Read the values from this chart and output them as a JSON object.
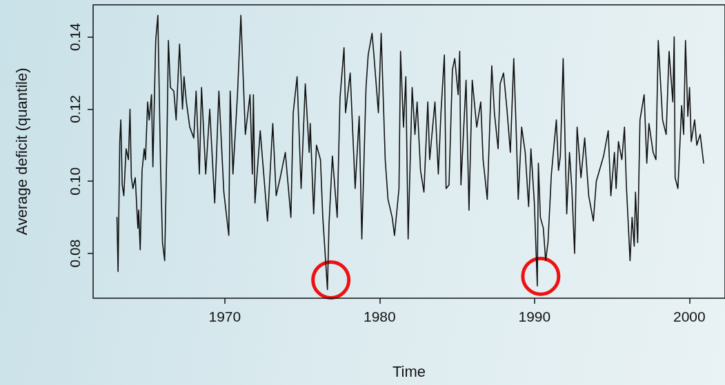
{
  "chart_data": {
    "type": "line",
    "xlabel": "Time",
    "ylabel": "Average deficit (quantile)",
    "xlim": [
      1961.5,
      2002.3
    ],
    "ylim": [
      0.0676,
      0.1489
    ],
    "xticks": [
      1970,
      1980,
      1990,
      2000
    ],
    "yticks": [
      0.08,
      {
        "value": 0.1,
        "label": "0.10"
      },
      0.12,
      0.14
    ],
    "grid": false,
    "marker": "none",
    "line_style": "solid",
    "series": [
      {
        "color": "#111111",
        "x": [
          1963.04,
          1963.11,
          1963.22,
          1963.29,
          1963.38,
          1963.48,
          1963.63,
          1963.78,
          1963.88,
          1963.97,
          1964.07,
          1964.22,
          1964.39,
          1964.44,
          1964.54,
          1964.66,
          1964.8,
          1964.88,
          1965.02,
          1965.12,
          1965.27,
          1965.36,
          1965.54,
          1965.68,
          1965.86,
          1965.98,
          1966.12,
          1966.27,
          1966.36,
          1966.49,
          1966.71,
          1966.86,
          1967.08,
          1967.27,
          1967.37,
          1967.52,
          1967.74,
          1968.0,
          1968.15,
          1968.36,
          1968.5,
          1968.77,
          1969.03,
          1969.35,
          1969.62,
          1969.94,
          1970.26,
          1970.35,
          1970.53,
          1970.82,
          1971.04,
          1971.33,
          1971.63,
          1971.78,
          1971.85,
          1971.95,
          1972.29,
          1972.76,
          1973.1,
          1973.32,
          1973.58,
          1973.91,
          1974.27,
          1974.42,
          1974.67,
          1974.93,
          1975.2,
          1975.45,
          1975.52,
          1975.74,
          1975.92,
          1976.18,
          1976.33,
          1976.63,
          1976.73,
          1976.95,
          1977.26,
          1977.44,
          1977.7,
          1977.8,
          1978.1,
          1978.42,
          1978.68,
          1978.85,
          1979.12,
          1979.26,
          1979.51,
          1979.63,
          1979.92,
          1980.1,
          1980.36,
          1980.54,
          1980.81,
          1980.96,
          1981.25,
          1981.35,
          1981.54,
          1981.69,
          1981.84,
          1982.1,
          1982.28,
          1982.42,
          1982.64,
          1982.86,
          1983.11,
          1983.23,
          1983.57,
          1983.79,
          1983.96,
          1984.18,
          1984.29,
          1984.48,
          1984.7,
          1984.85,
          1985.07,
          1985.17,
          1985.25,
          1985.58,
          1985.77,
          1985.98,
          1986.27,
          1986.53,
          1986.68,
          1986.95,
          1987.24,
          1987.41,
          1987.65,
          1987.78,
          1988.0,
          1988.22,
          1988.44,
          1988.66,
          1988.81,
          1988.95,
          1989.17,
          1989.4,
          1989.62,
          1989.77,
          1989.99,
          1990.18,
          1990.25,
          1990.38,
          1990.57,
          1990.72,
          1990.87,
          1991.09,
          1991.41,
          1991.55,
          1991.67,
          1991.85,
          1992.08,
          1992.26,
          1992.41,
          1992.59,
          1992.75,
          1993.0,
          1993.24,
          1993.5,
          1993.8,
          1993.99,
          1994.46,
          1994.76,
          1994.93,
          1995.16,
          1995.27,
          1995.42,
          1995.64,
          1995.81,
          1995.93,
          1996.17,
          1996.3,
          1996.44,
          1996.52,
          1996.66,
          1996.81,
          1997.08,
          1997.25,
          1997.39,
          1997.66,
          1997.84,
          1997.99,
          1998.27,
          1998.5,
          1998.69,
          1998.93,
          1999.02,
          1999.08,
          1999.26,
          1999.5,
          1999.63,
          1999.75,
          1999.9,
          2000.01,
          2000.12,
          2000.34,
          2000.48,
          2000.7,
          2000.92
        ],
        "values": [
          0.09,
          0.075,
          0.111,
          0.117,
          0.099,
          0.096,
          0.109,
          0.106,
          0.12,
          0.101,
          0.098,
          0.101,
          0.087,
          0.092,
          0.081,
          0.103,
          0.109,
          0.106,
          0.122,
          0.117,
          0.124,
          0.104,
          0.139,
          0.146,
          0.103,
          0.083,
          0.078,
          0.112,
          0.139,
          0.126,
          0.125,
          0.117,
          0.138,
          0.12,
          0.129,
          0.122,
          0.115,
          0.112,
          0.125,
          0.102,
          0.126,
          0.102,
          0.12,
          0.094,
          0.125,
          0.097,
          0.085,
          0.125,
          0.102,
          0.124,
          0.146,
          0.113,
          0.124,
          0.102,
          0.124,
          0.094,
          0.114,
          0.089,
          0.116,
          0.096,
          0.101,
          0.108,
          0.09,
          0.119,
          0.129,
          0.098,
          0.127,
          0.108,
          0.116,
          0.091,
          0.11,
          0.106,
          0.09,
          0.07,
          0.088,
          0.107,
          0.09,
          0.123,
          0.137,
          0.119,
          0.13,
          0.098,
          0.118,
          0.084,
          0.126,
          0.135,
          0.141,
          0.135,
          0.119,
          0.141,
          0.106,
          0.095,
          0.09,
          0.085,
          0.098,
          0.136,
          0.115,
          0.129,
          0.084,
          0.126,
          0.113,
          0.122,
          0.103,
          0.097,
          0.122,
          0.106,
          0.122,
          0.102,
          0.119,
          0.135,
          0.098,
          0.099,
          0.131,
          0.134,
          0.124,
          0.136,
          0.099,
          0.128,
          0.092,
          0.128,
          0.115,
          0.122,
          0.106,
          0.095,
          0.132,
          0.119,
          0.109,
          0.127,
          0.13,
          0.12,
          0.108,
          0.134,
          0.115,
          0.095,
          0.115,
          0.108,
          0.093,
          0.109,
          0.094,
          0.071,
          0.105,
          0.09,
          0.087,
          0.078,
          0.083,
          0.102,
          0.117,
          0.103,
          0.107,
          0.134,
          0.091,
          0.108,
          0.098,
          0.08,
          0.115,
          0.101,
          0.112,
          0.096,
          0.089,
          0.1,
          0.107,
          0.114,
          0.096,
          0.108,
          0.098,
          0.111,
          0.106,
          0.115,
          0.099,
          0.078,
          0.09,
          0.082,
          0.097,
          0.083,
          0.117,
          0.124,
          0.105,
          0.116,
          0.108,
          0.106,
          0.139,
          0.117,
          0.113,
          0.136,
          0.122,
          0.14,
          0.101,
          0.098,
          0.121,
          0.113,
          0.139,
          0.118,
          0.126,
          0.111,
          0.117,
          0.11,
          0.113,
          0.105
        ]
      }
    ]
  }
}
